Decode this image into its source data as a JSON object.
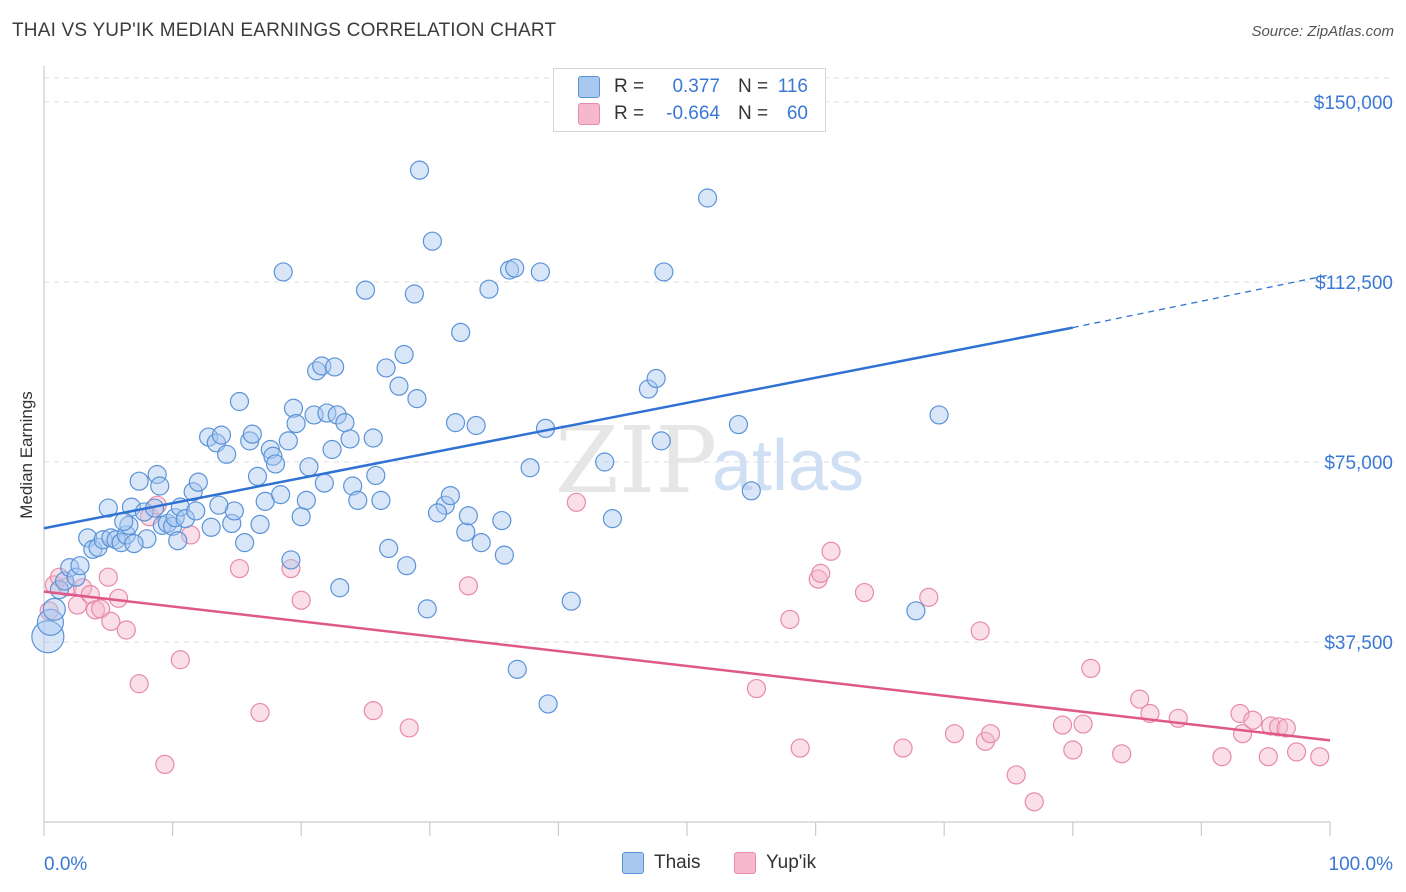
{
  "header": {
    "title": "THAI VS YUP'IK MEDIAN EARNINGS CORRELATION CHART",
    "source": "Source: ZipAtlas.com"
  },
  "legend": {
    "rows": [
      {
        "r_label": "R =",
        "r_value": "0.377",
        "n_label": "N =",
        "n_value": "116"
      },
      {
        "r_label": "R =",
        "r_value": "-0.664",
        "n_label": "N =",
        "n_value": "60"
      }
    ]
  },
  "bottom_legend": {
    "series": [
      "Thais",
      "Yup'ik"
    ]
  },
  "watermark": {
    "zip": "ZIP",
    "atlas": "atlas"
  },
  "colors": {
    "thais_fill": "#a8c8f0",
    "thais_stroke": "#5b93d8",
    "thais_line": "#2f72d2",
    "yupik_fill": "#f5b8cc",
    "yupik_stroke": "#e88aab",
    "yupik_line": "#e0588a",
    "tick_label": "#3a78d6",
    "grid": "#dddddd"
  },
  "chart_data": {
    "type": "scatter",
    "title": "THAI VS YUP'IK MEDIAN EARNINGS CORRELATION CHART",
    "xlabel": "",
    "ylabel": "Median Earnings",
    "xlim": [
      0,
      100
    ],
    "ylim": [
      0,
      155000
    ],
    "x_tick_labels": [
      "0.0%",
      "100.0%"
    ],
    "y_ticks": [
      37500,
      75000,
      112500,
      150000
    ],
    "y_tick_labels": [
      "$37,500",
      "$75,000",
      "$112,500",
      "$150,000"
    ],
    "grid": true,
    "legend_position": "top-center",
    "series": [
      {
        "name": "Thais",
        "r": 0.377,
        "n": 116,
        "trend": {
          "x0": 0,
          "y0": 61200,
          "x1": 80,
          "y1": 103000,
          "dashed_to_x": 100,
          "dashed_to_y": 114000
        },
        "points": [
          [
            0.3,
            38600
          ],
          [
            0.5,
            41600
          ],
          [
            0.8,
            44300
          ],
          [
            1.2,
            48400
          ],
          [
            1.6,
            50200
          ],
          [
            2.0,
            53000
          ],
          [
            2.5,
            51000
          ],
          [
            2.8,
            53400
          ],
          [
            3.4,
            59200
          ],
          [
            3.8,
            56800
          ],
          [
            4.2,
            57200
          ],
          [
            4.6,
            58800
          ],
          [
            5.2,
            59200
          ],
          [
            5.6,
            58800
          ],
          [
            6.0,
            58200
          ],
          [
            6.4,
            59800
          ],
          [
            6.6,
            61800
          ],
          [
            6.8,
            65600
          ],
          [
            7.4,
            71000
          ],
          [
            7.8,
            64600
          ],
          [
            8.0,
            59000
          ],
          [
            8.6,
            65400
          ],
          [
            8.8,
            72400
          ],
          [
            9.2,
            61800
          ],
          [
            9.6,
            62200
          ],
          [
            10.0,
            61600
          ],
          [
            10.2,
            63400
          ],
          [
            10.6,
            65600
          ],
          [
            11.0,
            63200
          ],
          [
            11.6,
            68800
          ],
          [
            11.8,
            64800
          ],
          [
            12.0,
            70800
          ],
          [
            12.8,
            80200
          ],
          [
            13.0,
            61400
          ],
          [
            13.4,
            79000
          ],
          [
            13.8,
            80600
          ],
          [
            14.2,
            76600
          ],
          [
            14.6,
            62200
          ],
          [
            14.8,
            64800
          ],
          [
            15.2,
            87600
          ],
          [
            15.6,
            58200
          ],
          [
            16.0,
            79400
          ],
          [
            16.2,
            80800
          ],
          [
            16.6,
            72000
          ],
          [
            16.8,
            62000
          ],
          [
            17.2,
            66800
          ],
          [
            17.6,
            77600
          ],
          [
            17.8,
            76200
          ],
          [
            18.0,
            74600
          ],
          [
            18.6,
            114600
          ],
          [
            19.0,
            79400
          ],
          [
            19.2,
            54600
          ],
          [
            19.4,
            86200
          ],
          [
            19.6,
            83000
          ],
          [
            20.0,
            63600
          ],
          [
            20.4,
            67000
          ],
          [
            20.6,
            74000
          ],
          [
            21.0,
            84800
          ],
          [
            21.2,
            94000
          ],
          [
            21.6,
            95000
          ],
          [
            22.0,
            85200
          ],
          [
            22.4,
            77600
          ],
          [
            22.6,
            94800
          ],
          [
            22.8,
            84800
          ],
          [
            23.0,
            48800
          ],
          [
            23.4,
            83200
          ],
          [
            23.8,
            79800
          ],
          [
            24.0,
            70000
          ],
          [
            24.4,
            67000
          ],
          [
            25.0,
            110800
          ],
          [
            25.6,
            80000
          ],
          [
            26.2,
            67000
          ],
          [
            26.6,
            94600
          ],
          [
            26.8,
            57000
          ],
          [
            27.6,
            90800
          ],
          [
            28.0,
            97400
          ],
          [
            28.2,
            53400
          ],
          [
            28.8,
            110000
          ],
          [
            29.0,
            88200
          ],
          [
            29.2,
            135800
          ],
          [
            29.8,
            44400
          ],
          [
            30.2,
            121000
          ],
          [
            31.2,
            66000
          ],
          [
            31.6,
            68000
          ],
          [
            32.0,
            83200
          ],
          [
            32.4,
            102000
          ],
          [
            32.8,
            60400
          ],
          [
            33.0,
            63800
          ],
          [
            33.6,
            82600
          ],
          [
            34.0,
            58200
          ],
          [
            34.6,
            111000
          ],
          [
            35.6,
            62800
          ],
          [
            35.8,
            55600
          ],
          [
            36.2,
            115000
          ],
          [
            36.6,
            115400
          ],
          [
            36.8,
            31800
          ],
          [
            37.8,
            73800
          ],
          [
            38.6,
            114600
          ],
          [
            39.0,
            82000
          ],
          [
            39.2,
            24600
          ],
          [
            41.0,
            46000
          ],
          [
            43.6,
            75000
          ],
          [
            44.2,
            63200
          ],
          [
            47.0,
            90200
          ],
          [
            47.6,
            92400
          ],
          [
            48.0,
            79400
          ],
          [
            48.2,
            114600
          ],
          [
            51.6,
            130000
          ],
          [
            54.0,
            82800
          ],
          [
            55.0,
            69000
          ],
          [
            67.8,
            44000
          ],
          [
            69.6,
            84800
          ],
          [
            5.0,
            65400
          ],
          [
            6.2,
            62600
          ],
          [
            7.0,
            58000
          ],
          [
            9.0,
            70000
          ],
          [
            10.4,
            58600
          ],
          [
            13.6,
            66000
          ],
          [
            18.4,
            68200
          ],
          [
            21.8,
            70600
          ],
          [
            25.8,
            72200
          ],
          [
            30.6,
            64400
          ]
        ]
      },
      {
        "name": "Yup'ik",
        "r": -0.664,
        "n": 60,
        "trend": {
          "x0": 0,
          "y0": 48000,
          "x1": 100,
          "y1": 17000
        },
        "points": [
          [
            0.4,
            44000
          ],
          [
            0.8,
            49400
          ],
          [
            1.2,
            51000
          ],
          [
            1.8,
            49000
          ],
          [
            2.6,
            45200
          ],
          [
            3.0,
            48800
          ],
          [
            3.6,
            47400
          ],
          [
            4.0,
            44200
          ],
          [
            4.4,
            44400
          ],
          [
            5.0,
            51000
          ],
          [
            5.2,
            41800
          ],
          [
            5.8,
            46600
          ],
          [
            6.4,
            40000
          ],
          [
            7.4,
            28800
          ],
          [
            8.2,
            63600
          ],
          [
            8.8,
            66000
          ],
          [
            9.4,
            12000
          ],
          [
            10.6,
            33800
          ],
          [
            11.4,
            59800
          ],
          [
            15.2,
            52800
          ],
          [
            16.8,
            22800
          ],
          [
            19.2,
            52800
          ],
          [
            20.0,
            46200
          ],
          [
            25.6,
            23200
          ],
          [
            28.4,
            19600
          ],
          [
            33.0,
            49200
          ],
          [
            41.4,
            66600
          ],
          [
            55.4,
            27800
          ],
          [
            58.8,
            15400
          ],
          [
            58.0,
            42200
          ],
          [
            60.2,
            50600
          ],
          [
            60.4,
            51800
          ],
          [
            61.2,
            56400
          ],
          [
            63.8,
            47800
          ],
          [
            66.8,
            15400
          ],
          [
            68.8,
            46800
          ],
          [
            70.8,
            18400
          ],
          [
            72.8,
            39800
          ],
          [
            73.2,
            16800
          ],
          [
            73.6,
            18400
          ],
          [
            75.6,
            9800
          ],
          [
            77.0,
            4200
          ],
          [
            79.2,
            20200
          ],
          [
            80.0,
            15000
          ],
          [
            80.8,
            20400
          ],
          [
            81.4,
            32000
          ],
          [
            83.8,
            14200
          ],
          [
            85.2,
            25600
          ],
          [
            86.0,
            22600
          ],
          [
            88.2,
            21600
          ],
          [
            91.6,
            13600
          ],
          [
            93.0,
            22600
          ],
          [
            93.2,
            18400
          ],
          [
            94.0,
            21200
          ],
          [
            95.2,
            13600
          ],
          [
            95.4,
            20000
          ],
          [
            96.0,
            19800
          ],
          [
            96.6,
            19600
          ],
          [
            97.4,
            14600
          ],
          [
            99.2,
            13600
          ]
        ]
      }
    ]
  }
}
